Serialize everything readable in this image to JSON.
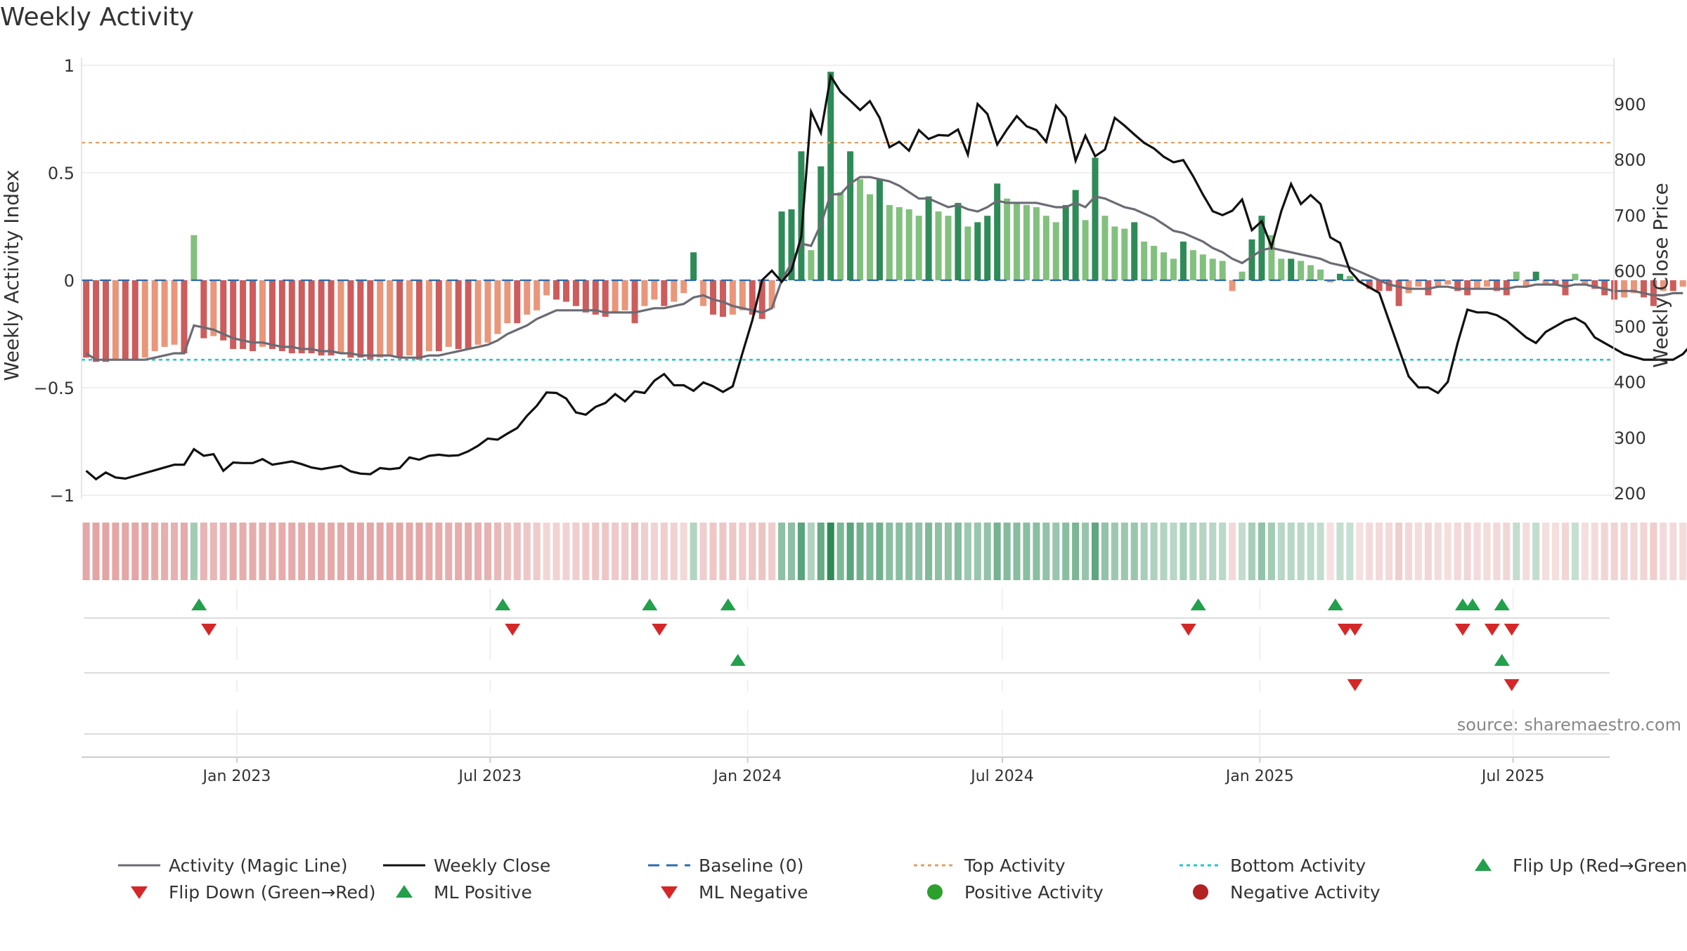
{
  "chart_data": {
    "type": "bar",
    "title": "Weekly Activity",
    "ylabel_left": "Weekly Activity Index",
    "ylabel_right": "Weekly Close Price",
    "source": "source: sharemaestro.com",
    "left_axis": {
      "ylim": [
        -1,
        1
      ],
      "ticks": [
        "1",
        "0.5",
        "0",
        "−0.5",
        "−1"
      ],
      "tick_values": [
        1,
        0.5,
        0,
        -0.5,
        -1
      ]
    },
    "right_axis": {
      "ylim": [
        200,
        975
      ],
      "ticks": [
        "900",
        "800",
        "700",
        "600",
        "500",
        "400",
        "300",
        "200"
      ],
      "tick_values": [
        900,
        800,
        700,
        600,
        500,
        400,
        300,
        200
      ]
    },
    "x_range": [
      "2022-09-12",
      "2025-09-08"
    ],
    "x_ticks": [
      {
        "label": "Jan 2023",
        "date": "2023-01-01"
      },
      {
        "label": "Jul 2023",
        "date": "2023-07-01"
      },
      {
        "label": "Jan 2024",
        "date": "2024-01-01"
      },
      {
        "label": "Jul 2024",
        "date": "2024-07-01"
      },
      {
        "label": "Jan 2025",
        "date": "2025-01-01"
      },
      {
        "label": "Jul 2025",
        "date": "2025-07-01"
      }
    ],
    "start_week": "2022-09-12",
    "top_activity": 0.64,
    "bottom_activity": -0.37,
    "baseline": 0,
    "grid": true,
    "legend_position": "bottom",
    "legend": [
      {
        "label": "Activity (Magic Line)",
        "marker": "line",
        "color": "#6b6b74"
      },
      {
        "label": "Weekly Close",
        "marker": "line",
        "color": "#111111"
      },
      {
        "label": "Baseline (0)",
        "marker": "dashed",
        "color": "#2b6cb0"
      },
      {
        "label": "Top Activity",
        "marker": "dotted",
        "color": "#e0a060"
      },
      {
        "label": "Bottom Activity",
        "marker": "dotted",
        "color": "#22c4d8"
      },
      {
        "label": "Flip Up (Red→Green)",
        "marker": "triangle-up",
        "color": "#22a04b"
      },
      {
        "label": "Flip Down (Green→Red)",
        "marker": "triangle-down",
        "color": "#d62728"
      },
      {
        "label": "ML Positive",
        "marker": "triangle-up",
        "color": "#22a04b"
      },
      {
        "label": "ML Negative",
        "marker": "triangle-down",
        "color": "#d62728"
      },
      {
        "label": "Positive Activity",
        "marker": "circle",
        "color": "#2ca02c"
      },
      {
        "label": "Negative Activity",
        "marker": "circle",
        "color": "#b22222"
      }
    ],
    "colors": {
      "pos_strong": "#2e8b57",
      "pos_light": "#82c07e",
      "neg_strong": "#cd5c5c",
      "neg_light": "#e9967a",
      "magic_line": "#6b6b74",
      "close": "#111111",
      "baseline": "#2b6cb0",
      "top": "#e0a060",
      "bottom": "#22c4d8",
      "up": "#22a04b",
      "down": "#d62728"
    },
    "activity": [
      -0.36,
      -0.38,
      -0.38,
      -0.37,
      -0.37,
      -0.37,
      -0.36,
      -0.33,
      -0.31,
      -0.3,
      -0.34,
      0.21,
      -0.27,
      -0.26,
      -0.28,
      -0.32,
      -0.32,
      -0.33,
      -0.31,
      -0.32,
      -0.33,
      -0.34,
      -0.34,
      -0.34,
      -0.35,
      -0.35,
      -0.34,
      -0.36,
      -0.36,
      -0.37,
      -0.36,
      -0.35,
      -0.36,
      -0.35,
      -0.37,
      -0.33,
      -0.33,
      -0.31,
      -0.32,
      -0.32,
      -0.3,
      -0.29,
      -0.25,
      -0.2,
      -0.2,
      -0.16,
      -0.14,
      -0.07,
      -0.09,
      -0.1,
      -0.12,
      -0.15,
      -0.16,
      -0.17,
      -0.15,
      -0.14,
      -0.2,
      -0.12,
      -0.09,
      -0.12,
      -0.1,
      -0.06,
      0.13,
      -0.12,
      -0.16,
      -0.17,
      -0.16,
      -0.14,
      -0.16,
      -0.18,
      -0.13,
      0.32,
      0.33,
      0.6,
      0.14,
      0.53,
      0.97,
      0.41,
      0.6,
      0.47,
      0.4,
      0.47,
      0.35,
      0.34,
      0.33,
      0.3,
      0.39,
      0.32,
      0.3,
      0.36,
      0.25,
      0.27,
      0.3,
      0.45,
      0.38,
      0.36,
      0.35,
      0.34,
      0.3,
      0.27,
      0.35,
      0.42,
      0.28,
      0.57,
      0.3,
      0.25,
      0.24,
      0.27,
      0.18,
      0.16,
      0.13,
      0.1,
      0.18,
      0.14,
      0.12,
      0.1,
      0.09,
      -0.05,
      0.04,
      0.19,
      0.3,
      0.21,
      0.1,
      0.1,
      0.09,
      0.07,
      0.05,
      -0.01,
      0.03,
      0.02,
      -0.01,
      -0.04,
      -0.05,
      -0.05,
      -0.12,
      -0.06,
      -0.03,
      -0.07,
      -0.03,
      -0.02,
      -0.05,
      -0.07,
      -0.04,
      -0.03,
      -0.05,
      -0.07,
      0.04,
      -0.03,
      0.04,
      -0.02,
      -0.02,
      -0.07,
      0.03,
      -0.02,
      -0.04,
      -0.07,
      -0.09,
      -0.08,
      -0.06,
      -0.08,
      -0.12,
      -0.05,
      -0.05,
      -0.03
    ],
    "magic_line": [
      -0.34,
      -0.37,
      -0.37,
      -0.37,
      -0.37,
      -0.37,
      -0.37,
      -0.36,
      -0.35,
      -0.34,
      -0.34,
      -0.21,
      -0.22,
      -0.23,
      -0.25,
      -0.27,
      -0.28,
      -0.29,
      -0.29,
      -0.3,
      -0.31,
      -0.31,
      -0.32,
      -0.32,
      -0.33,
      -0.33,
      -0.34,
      -0.34,
      -0.35,
      -0.35,
      -0.35,
      -0.35,
      -0.36,
      -0.36,
      -0.36,
      -0.35,
      -0.35,
      -0.34,
      -0.33,
      -0.32,
      -0.31,
      -0.3,
      -0.28,
      -0.25,
      -0.23,
      -0.21,
      -0.18,
      -0.16,
      -0.14,
      -0.14,
      -0.14,
      -0.14,
      -0.14,
      -0.15,
      -0.15,
      -0.15,
      -0.15,
      -0.14,
      -0.13,
      -0.13,
      -0.12,
      -0.11,
      -0.08,
      -0.07,
      -0.09,
      -0.1,
      -0.12,
      -0.13,
      -0.14,
      -0.15,
      -0.13,
      0.0,
      0.08,
      0.17,
      0.16,
      0.26,
      0.4,
      0.4,
      0.45,
      0.48,
      0.48,
      0.47,
      0.46,
      0.44,
      0.41,
      0.38,
      0.38,
      0.36,
      0.34,
      0.35,
      0.33,
      0.32,
      0.34,
      0.37,
      0.36,
      0.36,
      0.36,
      0.36,
      0.35,
      0.34,
      0.34,
      0.36,
      0.34,
      0.39,
      0.38,
      0.36,
      0.34,
      0.33,
      0.31,
      0.29,
      0.26,
      0.23,
      0.22,
      0.2,
      0.18,
      0.15,
      0.13,
      0.1,
      0.08,
      0.11,
      0.14,
      0.15,
      0.14,
      0.13,
      0.12,
      0.11,
      0.1,
      0.08,
      0.07,
      0.06,
      0.04,
      0.02,
      0.0,
      -0.02,
      -0.03,
      -0.04,
      -0.04,
      -0.04,
      -0.03,
      -0.03,
      -0.04,
      -0.04,
      -0.04,
      -0.04,
      -0.04,
      -0.04,
      -0.03,
      -0.03,
      -0.02,
      -0.02,
      -0.02,
      -0.03,
      -0.02,
      -0.02,
      -0.03,
      -0.04,
      -0.05,
      -0.05,
      -0.05,
      -0.06,
      -0.07,
      -0.07,
      -0.06,
      -0.06
    ],
    "weekly_close": [
      240,
      225,
      237,
      228,
      226,
      231,
      236,
      241,
      246,
      251,
      251,
      279,
      267,
      270,
      240,
      255,
      254,
      254,
      261,
      251,
      254,
      257,
      252,
      246,
      243,
      246,
      249,
      239,
      235,
      234,
      245,
      243,
      245,
      264,
      260,
      267,
      269,
      267,
      268,
      275,
      285,
      298,
      296,
      307,
      317,
      339,
      357,
      381,
      380,
      370,
      345,
      341,
      355,
      362,
      378,
      365,
      383,
      380,
      402,
      414,
      394,
      394,
      384,
      399,
      392,
      382,
      392,
      452,
      511,
      583,
      600,
      580,
      601,
      661,
      886,
      848,
      950,
      922,
      906,
      889,
      905,
      875,
      822,
      832,
      816,
      853,
      837,
      844,
      843,
      854,
      809,
      900,
      882,
      827,
      854,
      878,
      860,
      853,
      832,
      897,
      876,
      798,
      843,
      806,
      818,
      875,
      861,
      845,
      830,
      820,
      805,
      795,
      799,
      770,
      737,
      707,
      700,
      708,
      728,
      673,
      689,
      643,
      707,
      756,
      720,
      736,
      720,
      660,
      650,
      600,
      580,
      570,
      560,
      510,
      460,
      410,
      390,
      390,
      380,
      400,
      470,
      530,
      525,
      525,
      520,
      510,
      495,
      480,
      470,
      490,
      500,
      510,
      515,
      505,
      480,
      470,
      460,
      450,
      445,
      440,
      440,
      440,
      440,
      450,
      470,
      500,
      520,
      540
    ],
    "close_points_note_removed": null,
    "flip_up": [
      "2022-12-05",
      "2023-07-10",
      "2023-10-23",
      "2023-12-18",
      "2024-11-18",
      "2025-02-24",
      "2025-05-26",
      "2025-06-02",
      "2025-06-23"
    ],
    "flip_down": [
      "2022-12-12",
      "2023-07-17",
      "2023-10-30",
      "2024-11-11",
      "2025-03-03",
      "2025-03-10",
      "2025-05-26",
      "2025-06-16",
      "2025-06-30"
    ],
    "ml_positive": [
      "2023-12-25",
      "2025-06-23"
    ],
    "ml_negative": [
      "2025-03-10",
      "2025-06-30"
    ]
  }
}
